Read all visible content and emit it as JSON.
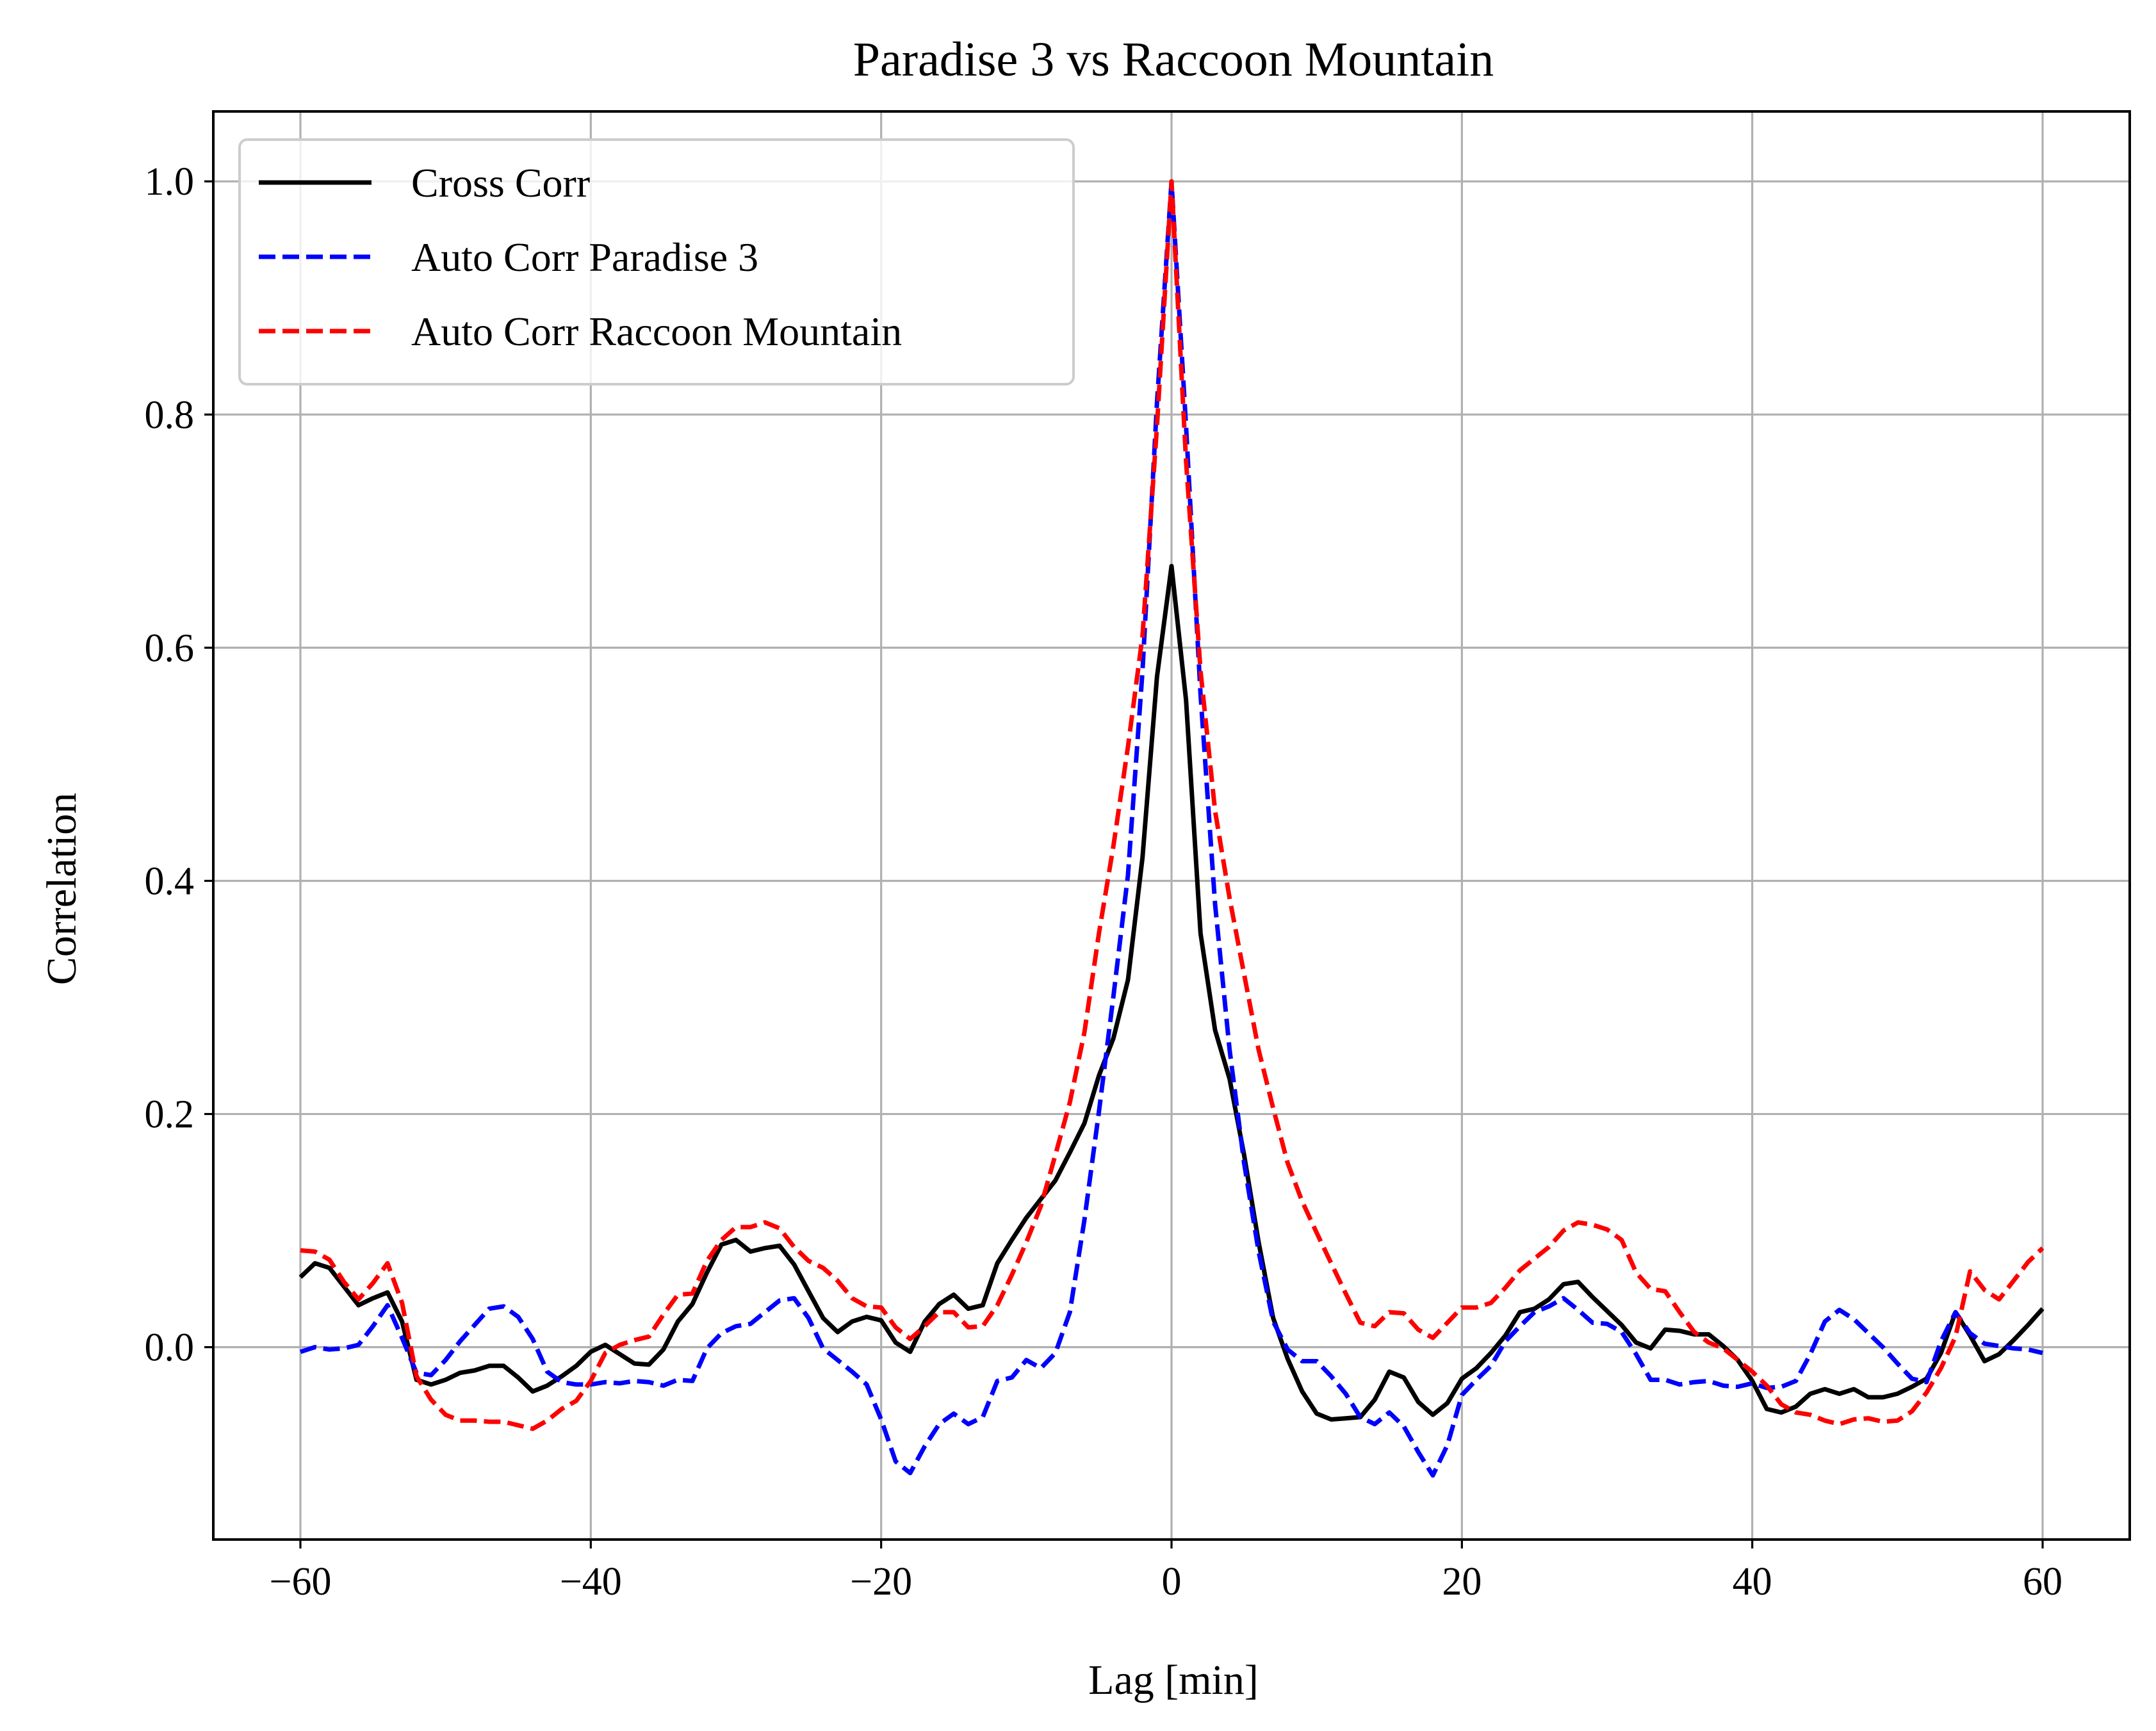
{
  "chart_data": {
    "type": "line",
    "title": "Paradise 3 vs Raccoon Mountain",
    "xlabel": "Lag [min]",
    "ylabel": "Correlation",
    "xlim": [
      -66,
      66
    ],
    "ylim": [
      -0.165,
      1.06
    ],
    "xticks": [
      -60,
      -40,
      -20,
      0,
      20,
      40,
      60
    ],
    "xtick_labels": [
      "−60",
      "−40",
      "−20",
      "0",
      "20",
      "40",
      "60"
    ],
    "yticks": [
      0.0,
      0.2,
      0.4,
      0.6,
      0.8,
      1.0
    ],
    "ytick_labels": [
      "0.0",
      "0.2",
      "0.4",
      "0.6",
      "0.8",
      "1.0"
    ],
    "grid": true,
    "legend_position": "top-left",
    "series": [
      {
        "name": "Cross Corr",
        "color": "#000000",
        "style": "solid",
        "x": [
          -60,
          -59,
          -58,
          -57,
          -56,
          -55,
          -54,
          -53,
          -52,
          -51,
          -50,
          -49,
          -48,
          -47,
          -46,
          -45,
          -44,
          -43,
          -42,
          -41,
          -40,
          -39,
          -38,
          -37,
          -36,
          -35,
          -34,
          -33,
          -32,
          -31,
          -30,
          -29,
          -28,
          -27,
          -26,
          -25,
          -24,
          -23,
          -22,
          -21,
          -20,
          -19,
          -18,
          -17,
          -16,
          -15,
          -14,
          -13,
          -12,
          -11,
          -10,
          -9,
          -8,
          -7,
          -6,
          -5,
          -4,
          -3,
          -2,
          -1,
          0,
          1,
          2,
          3,
          4,
          5,
          6,
          7,
          8,
          9,
          10,
          11,
          12,
          13,
          14,
          15,
          16,
          17,
          18,
          19,
          20,
          21,
          22,
          23,
          24,
          25,
          26,
          27,
          28,
          29,
          30,
          31,
          32,
          33,
          34,
          35,
          36,
          37,
          38,
          39,
          40,
          41,
          42,
          43,
          44,
          45,
          46,
          47,
          48,
          49,
          50,
          51,
          52,
          53,
          54,
          55,
          56,
          57,
          58,
          59,
          60
        ],
        "y": [
          0.06,
          0.072,
          0.068,
          0.052,
          0.036,
          0.042,
          0.047,
          0.022,
          -0.028,
          -0.032,
          -0.028,
          -0.022,
          -0.02,
          -0.016,
          -0.016,
          -0.026,
          -0.038,
          -0.033,
          -0.025,
          -0.016,
          -0.004,
          0.002,
          -0.006,
          -0.014,
          -0.015,
          -0.002,
          0.022,
          0.037,
          0.064,
          0.088,
          0.092,
          0.082,
          0.085,
          0.087,
          0.071,
          0.048,
          0.025,
          0.013,
          0.022,
          0.026,
          0.023,
          0.004,
          -0.004,
          0.022,
          0.037,
          0.045,
          0.033,
          0.036,
          0.072,
          0.092,
          0.111,
          0.127,
          0.143,
          0.167,
          0.192,
          0.233,
          0.265,
          0.315,
          0.42,
          0.575,
          0.67,
          0.555,
          0.355,
          0.272,
          0.23,
          0.165,
          0.09,
          0.025,
          -0.01,
          -0.038,
          -0.057,
          -0.062,
          -0.061,
          -0.06,
          -0.045,
          -0.021,
          -0.026,
          -0.047,
          -0.058,
          -0.048,
          -0.027,
          -0.018,
          -0.005,
          0.01,
          0.03,
          0.033,
          0.041,
          0.054,
          0.056,
          0.043,
          0.031,
          0.019,
          0.004,
          -0.001,
          0.015,
          0.014,
          0.011,
          0.011,
          0.001,
          -0.011,
          -0.029,
          -0.053,
          -0.056,
          -0.051,
          -0.04,
          -0.036,
          -0.04,
          -0.036,
          -0.043,
          -0.043,
          -0.04,
          -0.034,
          -0.027,
          -0.005,
          0.03,
          0.01,
          -0.012,
          -0.006,
          0.006,
          0.019,
          0.033
        ]
      },
      {
        "name": "Auto Corr Paradise 3",
        "color": "#0000ff",
        "style": "dashed",
        "x": [
          -60,
          -59,
          -58,
          -57,
          -56,
          -55,
          -54,
          -53,
          -52,
          -51,
          -50,
          -49,
          -48,
          -47,
          -46,
          -45,
          -44,
          -43,
          -42,
          -41,
          -40,
          -39,
          -38,
          -37,
          -36,
          -35,
          -34,
          -33,
          -32,
          -31,
          -30,
          -29,
          -28,
          -27,
          -26,
          -25,
          -24,
          -23,
          -22,
          -21,
          -20,
          -19,
          -18,
          -17,
          -16,
          -15,
          -14,
          -13,
          -12,
          -11,
          -10,
          -9,
          -8,
          -7,
          -6,
          -5,
          -4,
          -3,
          -2,
          -1,
          0,
          1,
          2,
          3,
          4,
          5,
          6,
          7,
          8,
          9,
          10,
          11,
          12,
          13,
          14,
          15,
          16,
          17,
          18,
          19,
          20,
          21,
          22,
          23,
          24,
          25,
          26,
          27,
          28,
          29,
          30,
          31,
          32,
          33,
          34,
          35,
          36,
          37,
          38,
          39,
          40,
          41,
          42,
          43,
          44,
          45,
          46,
          47,
          48,
          49,
          50,
          51,
          52,
          53,
          54,
          55,
          56,
          57,
          58,
          59,
          60
        ],
        "y": [
          -0.004,
          0.0,
          -0.002,
          -0.001,
          0.002,
          0.018,
          0.036,
          0.008,
          -0.022,
          -0.024,
          -0.011,
          0.005,
          0.019,
          0.033,
          0.035,
          0.026,
          0.007,
          -0.021,
          -0.03,
          -0.032,
          -0.032,
          -0.03,
          -0.031,
          -0.029,
          -0.03,
          -0.033,
          -0.028,
          -0.029,
          -0.001,
          0.012,
          0.018,
          0.02,
          0.03,
          0.04,
          0.042,
          0.025,
          -0.001,
          -0.011,
          -0.021,
          -0.032,
          -0.062,
          -0.098,
          -0.108,
          -0.085,
          -0.066,
          -0.057,
          -0.066,
          -0.06,
          -0.029,
          -0.026,
          -0.011,
          -0.018,
          -0.005,
          0.03,
          0.109,
          0.202,
          0.301,
          0.405,
          0.58,
          0.81,
          1.0,
          0.79,
          0.56,
          0.38,
          0.255,
          0.158,
          0.082,
          0.022,
          -0.002,
          -0.012,
          -0.012,
          -0.025,
          -0.04,
          -0.06,
          -0.066,
          -0.056,
          -0.068,
          -0.09,
          -0.11,
          -0.084,
          -0.041,
          -0.028,
          -0.016,
          0.005,
          0.018,
          0.03,
          0.035,
          0.042,
          0.032,
          0.021,
          0.02,
          0.013,
          -0.006,
          -0.028,
          -0.028,
          -0.032,
          -0.03,
          -0.029,
          -0.033,
          -0.034,
          -0.031,
          -0.035,
          -0.034,
          -0.029,
          -0.006,
          0.022,
          0.032,
          0.024,
          0.012,
          0.0,
          -0.014,
          -0.027,
          -0.03,
          0.005,
          0.03,
          0.012,
          0.003,
          0.001,
          -0.001,
          -0.002,
          -0.005
        ]
      },
      {
        "name": "Auto Corr Raccoon Mountain",
        "color": "#ff0000",
        "style": "dashed",
        "x": [
          -60,
          -59,
          -58,
          -57,
          -56,
          -55,
          -54,
          -53,
          -52,
          -51,
          -50,
          -49,
          -48,
          -47,
          -46,
          -45,
          -44,
          -43,
          -42,
          -41,
          -40,
          -39,
          -38,
          -37,
          -36,
          -35,
          -34,
          -33,
          -32,
          -31,
          -30,
          -29,
          -28,
          -27,
          -26,
          -25,
          -24,
          -23,
          -22,
          -21,
          -20,
          -19,
          -18,
          -17,
          -16,
          -15,
          -14,
          -13,
          -12,
          -11,
          -10,
          -9,
          -8,
          -7,
          -6,
          -5,
          -4,
          -3,
          -2,
          -1,
          0,
          1,
          2,
          3,
          4,
          5,
          6,
          7,
          8,
          9,
          10,
          11,
          12,
          13,
          14,
          15,
          16,
          17,
          18,
          19,
          20,
          21,
          22,
          23,
          24,
          25,
          26,
          27,
          28,
          29,
          30,
          31,
          32,
          33,
          34,
          35,
          36,
          37,
          38,
          39,
          40,
          41,
          42,
          43,
          44,
          45,
          46,
          47,
          48,
          49,
          50,
          51,
          52,
          53,
          54,
          55,
          56,
          57,
          58,
          59,
          60
        ],
        "y": [
          0.083,
          0.082,
          0.075,
          0.056,
          0.041,
          0.055,
          0.072,
          0.038,
          -0.025,
          -0.045,
          -0.058,
          -0.063,
          -0.063,
          -0.064,
          -0.064,
          -0.067,
          -0.07,
          -0.063,
          -0.053,
          -0.046,
          -0.029,
          -0.005,
          0.002,
          0.006,
          0.009,
          0.028,
          0.045,
          0.046,
          0.074,
          0.092,
          0.103,
          0.103,
          0.107,
          0.102,
          0.086,
          0.074,
          0.068,
          0.057,
          0.042,
          0.035,
          0.034,
          0.017,
          0.007,
          0.018,
          0.03,
          0.03,
          0.017,
          0.018,
          0.036,
          0.062,
          0.09,
          0.121,
          0.165,
          0.21,
          0.27,
          0.355,
          0.43,
          0.515,
          0.61,
          0.79,
          1.0,
          0.76,
          0.58,
          0.46,
          0.385,
          0.32,
          0.255,
          0.205,
          0.158,
          0.125,
          0.098,
          0.072,
          0.046,
          0.021,
          0.018,
          0.03,
          0.029,
          0.015,
          0.008,
          0.021,
          0.034,
          0.034,
          0.038,
          0.051,
          0.066,
          0.076,
          0.086,
          0.1,
          0.107,
          0.105,
          0.101,
          0.092,
          0.064,
          0.05,
          0.048,
          0.03,
          0.013,
          0.004,
          -0.001,
          -0.011,
          -0.021,
          -0.033,
          -0.049,
          -0.056,
          -0.058,
          -0.063,
          -0.066,
          -0.062,
          -0.061,
          -0.064,
          -0.063,
          -0.055,
          -0.039,
          -0.018,
          0.009,
          0.065,
          0.049,
          0.041,
          0.057,
          0.073,
          0.085
        ]
      }
    ]
  }
}
